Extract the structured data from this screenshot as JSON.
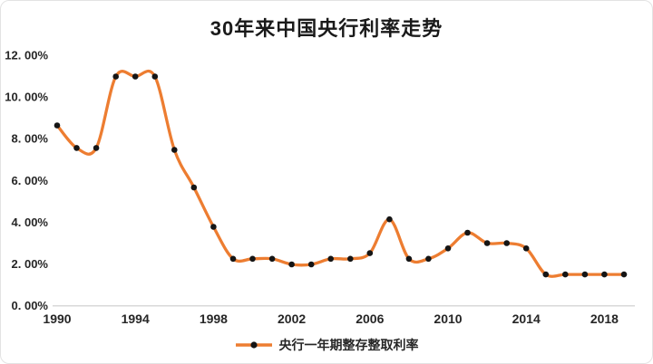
{
  "chart_data": {
    "type": "line",
    "title": "30年来中国央行利率走势",
    "x": [
      1990,
      1991,
      1992,
      1993,
      1994,
      1995,
      1996,
      1997,
      1998,
      1999,
      2000,
      2001,
      2002,
      2003,
      2004,
      2005,
      2006,
      2007,
      2008,
      2009,
      2010,
      2011,
      2012,
      2013,
      2014,
      2015,
      2016,
      2017,
      2018,
      2019
    ],
    "series": [
      {
        "name": "央行一年期整存整取利率",
        "values": [
          8.64,
          7.56,
          7.56,
          10.98,
          10.98,
          10.98,
          7.47,
          5.67,
          3.78,
          2.25,
          2.25,
          2.25,
          1.98,
          1.98,
          2.25,
          2.25,
          2.52,
          4.14,
          2.25,
          2.25,
          2.75,
          3.5,
          3.0,
          3.0,
          2.75,
          1.5,
          1.5,
          1.5,
          1.5,
          1.5
        ]
      }
    ],
    "xlabel": "",
    "ylabel": "",
    "ylim": [
      0,
      12
    ],
    "y_ticks": [
      {
        "value": 12,
        "label": "12. 00%"
      },
      {
        "value": 10,
        "label": "10. 00%"
      },
      {
        "value": 8,
        "label": "8. 00%"
      },
      {
        "value": 6,
        "label": "6. 00%"
      },
      {
        "value": 4,
        "label": "4. 00%"
      },
      {
        "value": 2,
        "label": "2. 00%"
      },
      {
        "value": 0,
        "label": "0. 00%"
      }
    ],
    "x_ticks": [
      {
        "value": 1990,
        "label": "1990"
      },
      {
        "value": 1994,
        "label": "1994"
      },
      {
        "value": 1998,
        "label": "1998"
      },
      {
        "value": 2002,
        "label": "2002"
      },
      {
        "value": 2006,
        "label": "2006"
      },
      {
        "value": 2010,
        "label": "2010"
      },
      {
        "value": 2014,
        "label": "2014"
      },
      {
        "value": 2018,
        "label": "2018"
      }
    ],
    "smooth": true,
    "grid": false,
    "legend_position": "bottom",
    "colors": {
      "line": "#ED7D31",
      "marker": "#151515",
      "axis_line": "#d9d9d9",
      "text": "#262626"
    }
  }
}
